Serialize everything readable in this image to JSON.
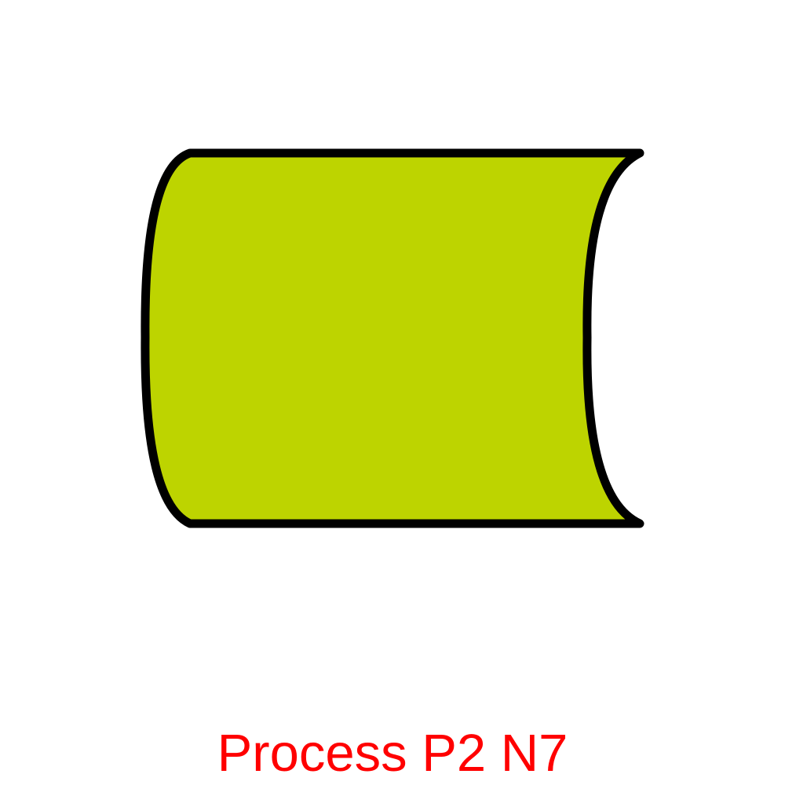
{
  "diagram": {
    "shape": {
      "kind": "stored-data",
      "fill_color": "#bdd400",
      "stroke_color": "#000000"
    },
    "caption": {
      "text": "Process P2 N7",
      "color": "#ff0000"
    }
  }
}
